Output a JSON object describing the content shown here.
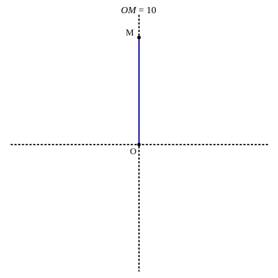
{
  "caption": {
    "variable": "OM",
    "equals": " = ",
    "value": "10"
  },
  "points": {
    "origin": {
      "label": "O"
    },
    "end": {
      "label": "M"
    }
  },
  "colors": {
    "segment": "#1a1aa6",
    "axes": "#000000",
    "point": "#000000"
  },
  "segment_length": 10
}
